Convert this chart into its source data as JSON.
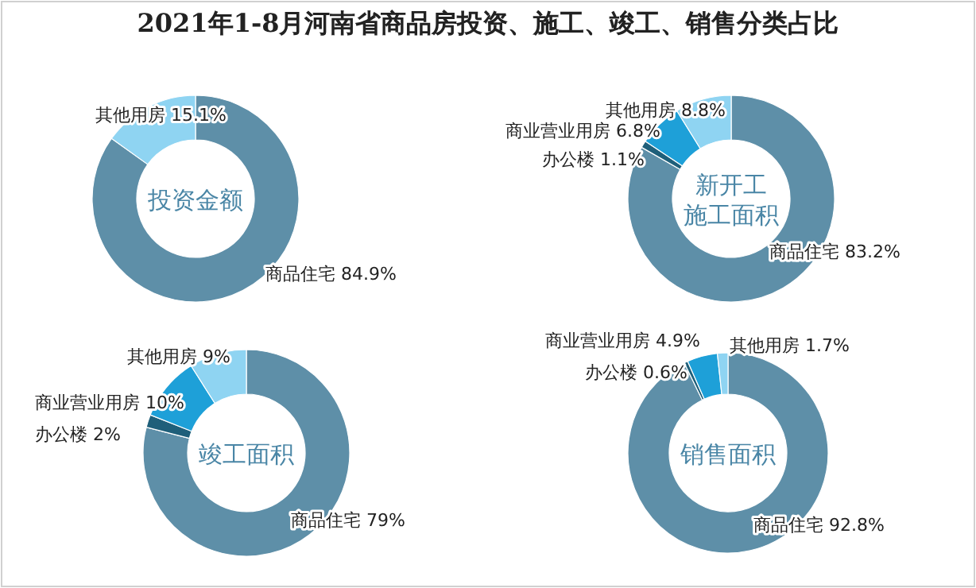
{
  "chart_data": [
    {
      "type": "donut",
      "title": "投资金额",
      "annotations": [
        "2021年1-8月河南省商品房投资、施工、竣工、销售分类占比"
      ],
      "categories": [
        "商品住宅",
        "其他用房"
      ],
      "values": [
        84.9,
        15.1
      ],
      "colors": [
        "#5e8fa8",
        "#8fd4f2"
      ],
      "value_labels": [
        "84.9%",
        "15.1%"
      ]
    },
    {
      "type": "donut",
      "title": "新开工施工面积",
      "categories": [
        "商品住宅",
        "办公楼",
        "商业营业用房",
        "其他用房"
      ],
      "values": [
        83.2,
        1.1,
        6.8,
        8.8
      ],
      "colors": [
        "#5e8fa8",
        "#1f5f7a",
        "#1ea0d8",
        "#8fd4f2"
      ],
      "value_labels": [
        "83.2%",
        "1.1%",
        "6.8%",
        "8.8%"
      ]
    },
    {
      "type": "donut",
      "title": "竣工面积",
      "categories": [
        "商品住宅",
        "办公楼",
        "商业营业用房",
        "其他用房"
      ],
      "values": [
        79,
        2,
        10,
        9
      ],
      "colors": [
        "#5e8fa8",
        "#1f5f7a",
        "#1ea0d8",
        "#8fd4f2"
      ],
      "value_labels": [
        "79%",
        "2%",
        "10%",
        "9%"
      ]
    },
    {
      "type": "donut",
      "title": "销售面积",
      "categories": [
        "商品住宅",
        "办公楼",
        "商业营业用房",
        "其他用房"
      ],
      "values": [
        92.8,
        0.6,
        4.9,
        1.7
      ],
      "colors": [
        "#5e8fa8",
        "#1f5f7a",
        "#1ea0d8",
        "#8fd4f2"
      ],
      "value_labels": [
        "92.8%",
        "0.6%",
        "4.9%",
        "1.7%"
      ]
    }
  ]
}
